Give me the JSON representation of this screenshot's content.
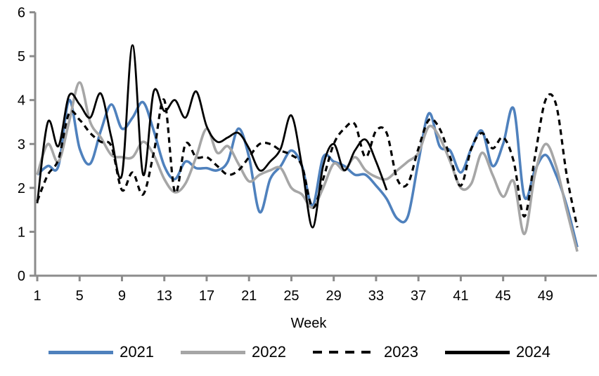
{
  "chart_data": {
    "type": "line",
    "title": "",
    "xlabel": "Week",
    "ylabel": "",
    "x_ticks": [
      1,
      5,
      9,
      13,
      17,
      21,
      25,
      29,
      33,
      37,
      41,
      45,
      49
    ],
    "y_ticks": [
      0,
      1,
      2,
      3,
      4,
      5,
      6
    ],
    "xlim": [
      1,
      53.8
    ],
    "ylim": [
      0,
      6
    ],
    "grid": false,
    "legend_position": "bottom",
    "x": [
      1,
      2,
      3,
      4,
      5,
      6,
      7,
      8,
      9,
      10,
      11,
      12,
      13,
      14,
      15,
      16,
      17,
      18,
      19,
      20,
      21,
      22,
      23,
      24,
      25,
      26,
      27,
      28,
      29,
      30,
      31,
      32,
      33,
      34,
      35,
      36,
      37,
      38,
      39,
      40,
      41,
      42,
      43,
      44,
      45,
      46,
      47,
      48,
      49,
      50,
      51,
      52
    ],
    "series": [
      {
        "name": "2021",
        "color": "#4f81bd",
        "style": "solid",
        "width": 3.6,
        "values": [
          2.3,
          2.5,
          2.5,
          4.0,
          2.9,
          2.55,
          3.3,
          3.9,
          3.35,
          3.6,
          3.95,
          3.3,
          2.5,
          2.2,
          2.6,
          2.45,
          2.45,
          2.4,
          2.6,
          3.35,
          2.7,
          1.45,
          2.2,
          2.5,
          2.85,
          2.5,
          1.6,
          2.7,
          2.6,
          2.5,
          2.3,
          2.3,
          2.05,
          1.75,
          1.3,
          1.35,
          2.6,
          3.7,
          2.95,
          2.85,
          2.35,
          2.9,
          3.3,
          2.5,
          3.0,
          3.8,
          1.8,
          2.4,
          2.75,
          2.3,
          1.6,
          0.65
        ]
      },
      {
        "name": "2022",
        "color": "#a6a6a6",
        "style": "solid",
        "width": 3.6,
        "values": [
          2.3,
          3.0,
          2.6,
          3.5,
          4.4,
          3.5,
          3.15,
          2.75,
          2.7,
          2.7,
          3.05,
          2.75,
          2.2,
          1.9,
          2.1,
          2.7,
          3.35,
          2.8,
          2.95,
          2.55,
          2.15,
          2.3,
          2.4,
          2.45,
          2.0,
          1.85,
          1.55,
          2.0,
          2.55,
          2.4,
          2.7,
          2.4,
          2.25,
          2.2,
          2.4,
          2.6,
          2.8,
          3.4,
          3.15,
          2.6,
          2.0,
          2.1,
          2.8,
          2.3,
          1.8,
          2.15,
          0.95,
          2.3,
          3.0,
          2.5,
          1.5,
          0.55
        ]
      },
      {
        "name": "2023",
        "color": "#000000",
        "style": "dashed",
        "width": 3.2,
        "values": [
          1.7,
          2.3,
          2.65,
          3.7,
          3.55,
          3.25,
          3.05,
          2.95,
          1.95,
          2.35,
          1.85,
          2.8,
          4.0,
          1.9,
          3.0,
          2.7,
          2.7,
          2.5,
          2.3,
          2.4,
          2.7,
          3.0,
          3.0,
          2.85,
          2.75,
          2.5,
          1.55,
          2.2,
          3.0,
          3.35,
          3.45,
          2.7,
          3.3,
          3.25,
          2.2,
          2.1,
          2.9,
          3.55,
          3.35,
          2.7,
          2.05,
          2.9,
          3.25,
          2.9,
          3.15,
          2.6,
          1.35,
          2.7,
          4.0,
          3.9,
          2.3,
          1.1
        ]
      },
      {
        "name": "2024",
        "color": "#000000",
        "style": "solid",
        "width": 2.8,
        "values": [
          1.65,
          3.5,
          2.95,
          4.1,
          3.9,
          3.6,
          4.15,
          3.15,
          2.3,
          5.25,
          2.3,
          4.2,
          3.75,
          4.0,
          3.6,
          4.2,
          3.4,
          3.05,
          3.15,
          3.25,
          2.9,
          2.4,
          2.6,
          2.9,
          3.65,
          2.5,
          1.1,
          2.5,
          3.0,
          2.4,
          2.85,
          3.1,
          2.6,
          1.95,
          null,
          null,
          null,
          null,
          null,
          null,
          null,
          null,
          null,
          null,
          null,
          null,
          null,
          null,
          null,
          null,
          null,
          null
        ]
      }
    ]
  },
  "style": {
    "axis_color": "#8c8c8c",
    "text_color": "#000000",
    "background": "#ffffff"
  }
}
